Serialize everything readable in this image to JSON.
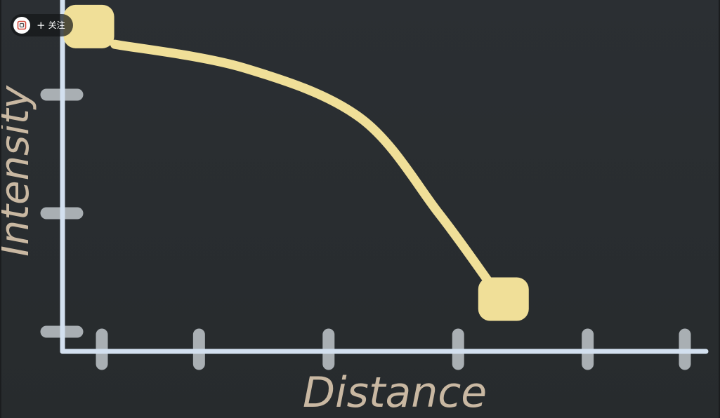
{
  "overlay": {
    "follow_plus": "+",
    "follow_label": "关注",
    "avatar_icon": "channel-logo-icon"
  },
  "colors": {
    "background": "#2a2e31",
    "axis": "#d3e0ef",
    "tick": "#a9afb3",
    "curve": "#f0df98",
    "endpoint": "#f0df98",
    "axis_title": "#c9b8a2"
  },
  "chart_data": {
    "type": "line",
    "title": "",
    "xlabel": "Distance",
    "ylabel": "Intensity",
    "xlim": [
      0,
      10
    ],
    "ylim": [
      0,
      10
    ],
    "x_ticks": [
      1,
      2.5,
      4.5,
      6.5,
      8.5,
      10
    ],
    "y_ticks": [
      1,
      5,
      9
    ],
    "grid": false,
    "series": [
      {
        "name": "intensity-curve",
        "x": [
          1.2,
          3.2,
          5.0,
          6.2,
          7.0
        ],
        "y": [
          10.7,
          9.9,
          8.2,
          5.0,
          2.6
        ]
      }
    ],
    "endpoints": [
      {
        "name": "start",
        "x": 0.8,
        "y": 11.3
      },
      {
        "name": "end",
        "x": 7.2,
        "y": 2.1
      }
    ]
  }
}
